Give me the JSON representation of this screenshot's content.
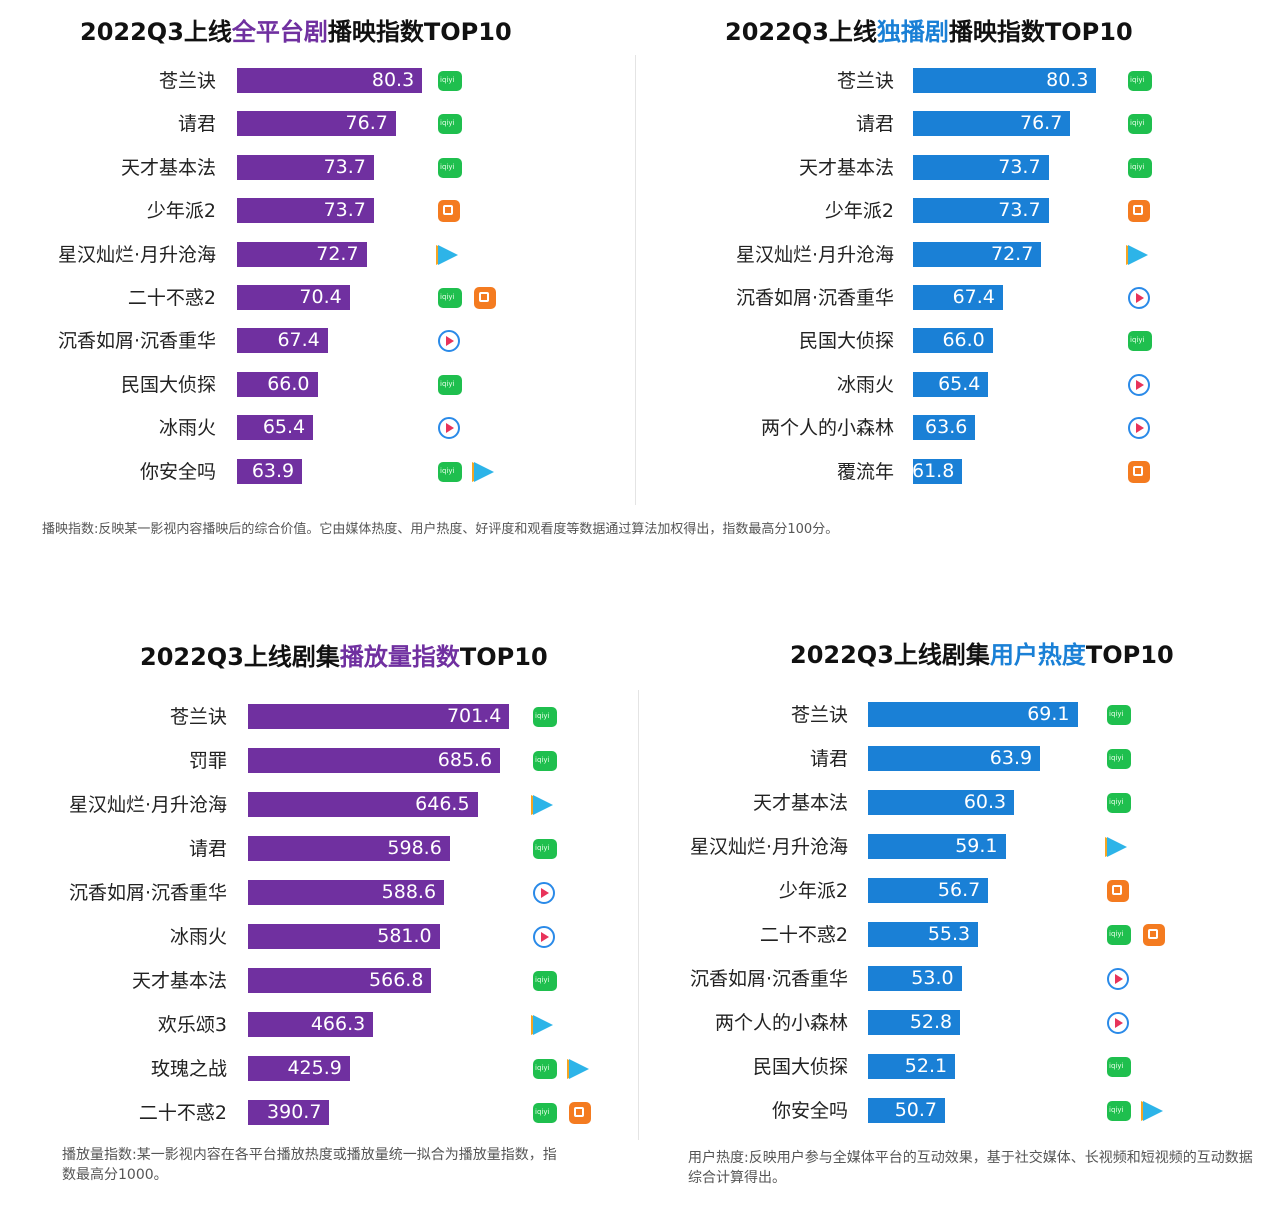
{
  "colors": {
    "purple": "#7030a0",
    "blue": "#1a80d6"
  },
  "platform_icons": {
    "iqiyi": "iqiyi-icon",
    "mango": "mango-tv-icon",
    "tencent": "tencent-video-icon",
    "youku": "youku-icon"
  },
  "chart_data": [
    {
      "type": "bar",
      "orientation": "horizontal",
      "title_parts": [
        "2022Q3上线",
        "全平台剧",
        "播映指数TOP10"
      ],
      "title_highlight_color": "#7030a0",
      "bar_color": "#7030a0",
      "xlim": [
        55,
        100
      ],
      "categories": [
        "苍兰诀",
        "请君",
        "天才基本法",
        "少年派2",
        "星汉灿烂·月升沧海",
        "二十不惑2",
        "沉香如屑·沉香重华",
        "民国大侦探",
        "冰雨火",
        "你安全吗"
      ],
      "values": [
        80.3,
        76.7,
        73.7,
        73.7,
        72.7,
        70.4,
        67.4,
        66.0,
        65.4,
        63.9
      ],
      "value_labels": [
        "80.3",
        "76.7",
        "73.7",
        "73.7",
        "72.7",
        "70.4",
        "67.4",
        "66.0",
        "65.4",
        "63.9"
      ],
      "platforms": [
        [
          "iqiyi"
        ],
        [
          "iqiyi"
        ],
        [
          "iqiyi"
        ],
        [
          "mango"
        ],
        [
          "tencent"
        ],
        [
          "iqiyi",
          "mango"
        ],
        [
          "youku"
        ],
        [
          "iqiyi"
        ],
        [
          "youku"
        ],
        [
          "iqiyi",
          "tencent"
        ]
      ],
      "note": "播映指数:反映某一影视内容播映后的综合价值。它由媒体热度、用户热度、好评度和观看度等数据通过算法加权得出，指数最高分100分。"
    },
    {
      "type": "bar",
      "orientation": "horizontal",
      "title_parts": [
        "2022Q3上线",
        "独播剧",
        "播映指数TOP10"
      ],
      "title_highlight_color": "#1a80d6",
      "bar_color": "#1a80d6",
      "xlim": [
        55,
        100
      ],
      "categories": [
        "苍兰诀",
        "请君",
        "天才基本法",
        "少年派2",
        "星汉灿烂·月升沧海",
        "沉香如屑·沉香重华",
        "民国大侦探",
        "冰雨火",
        "两个人的小森林",
        "覆流年"
      ],
      "values": [
        80.3,
        76.7,
        73.7,
        73.7,
        72.7,
        67.4,
        66.0,
        65.4,
        63.6,
        61.8
      ],
      "value_labels": [
        "80.3",
        "76.7",
        "73.7",
        "73.7",
        "72.7",
        "67.4",
        "66.0",
        "65.4",
        "63.6",
        "61.8"
      ],
      "platforms": [
        [
          "iqiyi"
        ],
        [
          "iqiyi"
        ],
        [
          "iqiyi"
        ],
        [
          "mango"
        ],
        [
          "tencent"
        ],
        [
          "youku"
        ],
        [
          "iqiyi"
        ],
        [
          "youku"
        ],
        [
          "youku"
        ],
        [
          "mango"
        ]
      ]
    },
    {
      "type": "bar",
      "orientation": "horizontal",
      "title_parts": [
        "2022Q3上线剧集",
        "播放量指数",
        "TOP10"
      ],
      "title_highlight_color": "#7030a0",
      "bar_color": "#7030a0",
      "xlim": [
        250,
        1000
      ],
      "categories": [
        "苍兰诀",
        "罚罪",
        "星汉灿烂·月升沧海",
        "请君",
        "沉香如屑·沉香重华",
        "冰雨火",
        "天才基本法",
        "欢乐颂3",
        "玫瑰之战",
        "二十不惑2"
      ],
      "values": [
        701.4,
        685.6,
        646.5,
        598.6,
        588.6,
        581.0,
        566.8,
        466.3,
        425.9,
        390.7
      ],
      "value_labels": [
        "701.4",
        "685.6",
        "646.5",
        "598.6",
        "588.6",
        "581.0",
        "566.8",
        "466.3",
        "425.9",
        "390.7"
      ],
      "platforms": [
        [
          "iqiyi"
        ],
        [
          "iqiyi"
        ],
        [
          "tencent"
        ],
        [
          "iqiyi"
        ],
        [
          "youku"
        ],
        [
          "youku"
        ],
        [
          "iqiyi"
        ],
        [
          "tencent"
        ],
        [
          "iqiyi",
          "tencent"
        ],
        [
          "iqiyi",
          "mango"
        ]
      ],
      "note": "播放量指数:某一影视内容在各平台播放热度或播放量统一拟合为播放量指数，指数最高分1000。"
    },
    {
      "type": "bar",
      "orientation": "horizontal",
      "title_parts": [
        "2022Q3上线剧集",
        "用户热度",
        "TOP10"
      ],
      "title_highlight_color": "#1a80d6",
      "bar_color": "#1a80d6",
      "xlim": [
        40,
        100
      ],
      "categories": [
        "苍兰诀",
        "请君",
        "天才基本法",
        "星汉灿烂·月升沧海",
        "少年派2",
        "二十不惑2",
        "沉香如屑·沉香重华",
        "两个人的小森林",
        "民国大侦探",
        "你安全吗"
      ],
      "values": [
        69.1,
        63.9,
        60.3,
        59.1,
        56.7,
        55.3,
        53.0,
        52.8,
        52.1,
        50.7
      ],
      "value_labels": [
        "69.1",
        "63.9",
        "60.3",
        "59.1",
        "56.7",
        "55.3",
        "53.0",
        "52.8",
        "52.1",
        "50.7"
      ],
      "platforms": [
        [
          "iqiyi"
        ],
        [
          "iqiyi"
        ],
        [
          "iqiyi"
        ],
        [
          "tencent"
        ],
        [
          "mango"
        ],
        [
          "iqiyi",
          "mango"
        ],
        [
          "youku"
        ],
        [
          "youku"
        ],
        [
          "iqiyi"
        ],
        [
          "iqiyi",
          "tencent"
        ]
      ],
      "note": "用户热度:反映用户参与全媒体平台的互动效果，基于社交媒体、长视频和短视频的互动数据综合计算得出。"
    }
  ]
}
